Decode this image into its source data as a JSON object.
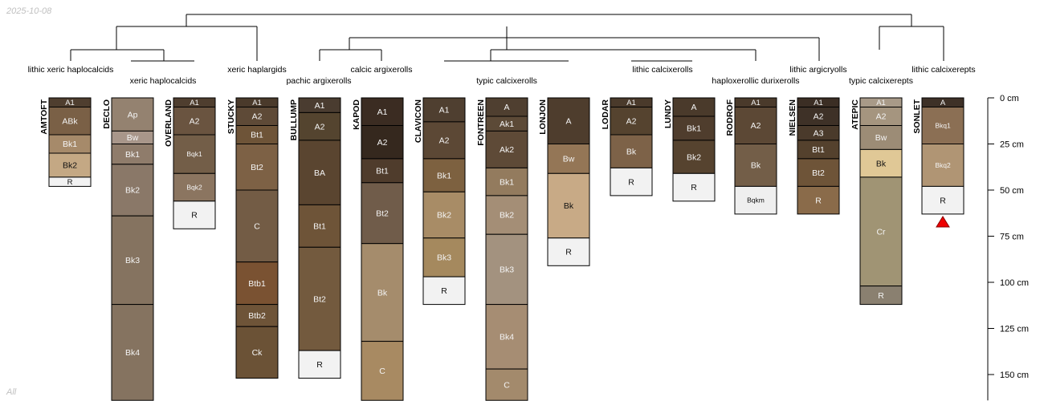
{
  "header": {
    "date": "2025-10-08"
  },
  "footer": {
    "note": "All"
  },
  "depth_axis": {
    "unit": "cm",
    "max_depth_shown": 164,
    "ticks": [
      {
        "value": 0,
        "label": "0 cm"
      },
      {
        "value": 25,
        "label": "25 cm"
      },
      {
        "value": 50,
        "label": "50 cm"
      },
      {
        "value": 75,
        "label": "75 cm"
      },
      {
        "value": 100,
        "label": "100 cm"
      },
      {
        "value": 125,
        "label": "125 cm"
      },
      {
        "value": 150,
        "label": "150 cm"
      }
    ]
  },
  "taxa_labels": [
    "lithic xeric haplocalcids",
    "xeric haplocalcids",
    "xeric haplargids",
    "pachic argixerolls",
    "calcic argixerolls",
    "typic calcixerolls",
    "lithic calcixerolls",
    "haploxerollic durixerolls",
    "lithic argicryolls",
    "typic calcixerepts",
    "lithic calcixerepts"
  ],
  "profiles": [
    {
      "name": "AMTOFT",
      "horizons": [
        {
          "name": "A1",
          "top": 0,
          "bottom": 5,
          "color": "#4f3e2f"
        },
        {
          "name": "ABk",
          "top": 5,
          "bottom": 20,
          "color": "#7a6046"
        },
        {
          "name": "Bk1",
          "top": 20,
          "bottom": 30,
          "color": "#a68a6a"
        },
        {
          "name": "Bk2",
          "top": 30,
          "bottom": 43,
          "color": "#c4a884"
        },
        {
          "name": "R",
          "top": 43,
          "bottom": 48,
          "color": "#f2f2f2"
        }
      ]
    },
    {
      "name": "DECLO",
      "horizons": [
        {
          "name": "Ap",
          "top": 0,
          "bottom": 18,
          "color": "#948270"
        },
        {
          "name": "Bw",
          "top": 18,
          "bottom": 25,
          "color": "#a8968a"
        },
        {
          "name": "Bk1",
          "top": 25,
          "bottom": 36,
          "color": "#8f7c6b"
        },
        {
          "name": "Bk2",
          "top": 36,
          "bottom": 64,
          "color": "#8a7868"
        },
        {
          "name": "Bk3",
          "top": 64,
          "bottom": 112,
          "color": "#857360"
        },
        {
          "name": "Bk4",
          "top": 112,
          "bottom": 164,
          "color": "#857360"
        }
      ]
    },
    {
      "name": "OVERLAND",
      "horizons": [
        {
          "name": "A1",
          "top": 0,
          "bottom": 5,
          "color": "#4f3e2f"
        },
        {
          "name": "A2",
          "top": 5,
          "bottom": 20,
          "color": "#6a5440"
        },
        {
          "name": "Bqk1",
          "top": 20,
          "bottom": 41,
          "color": "#735e48"
        },
        {
          "name": "Bqk2",
          "top": 41,
          "bottom": 56,
          "color": "#8b7560"
        },
        {
          "name": "R",
          "top": 56,
          "bottom": 71,
          "color": "#f2f2f2"
        }
      ]
    },
    {
      "name": "STUCKY",
      "horizons": [
        {
          "name": "A1",
          "top": 0,
          "bottom": 5,
          "color": "#4a3a2b"
        },
        {
          "name": "A2",
          "top": 5,
          "bottom": 15,
          "color": "#5e4a37"
        },
        {
          "name": "Bt1",
          "top": 15,
          "bottom": 25,
          "color": "#6e5438"
        },
        {
          "name": "Bt2",
          "top": 25,
          "bottom": 50,
          "color": "#7d6145"
        },
        {
          "name": "C",
          "top": 50,
          "bottom": 89,
          "color": "#735c45"
        },
        {
          "name": "Btb1",
          "top": 89,
          "bottom": 112,
          "color": "#7a5232"
        },
        {
          "name": "Btb2",
          "top": 112,
          "bottom": 124,
          "color": "#6e5438"
        },
        {
          "name": "Ck",
          "top": 124,
          "bottom": 152,
          "color": "#6b5236"
        }
      ]
    },
    {
      "name": "BULLUMP",
      "horizons": [
        {
          "name": "A1",
          "top": 0,
          "bottom": 8,
          "color": "#4a3c30"
        },
        {
          "name": "A2",
          "top": 8,
          "bottom": 23,
          "color": "#54442f"
        },
        {
          "name": "BA",
          "top": 23,
          "bottom": 58,
          "color": "#5a4530"
        },
        {
          "name": "Bt1",
          "top": 58,
          "bottom": 81,
          "color": "#6e5438"
        },
        {
          "name": "Bt2",
          "top": 81,
          "bottom": 137,
          "color": "#735a3e"
        },
        {
          "name": "R",
          "top": 137,
          "bottom": 152,
          "color": "#f2f2f2"
        }
      ]
    },
    {
      "name": "KAPOD",
      "horizons": [
        {
          "name": "A1",
          "top": 0,
          "bottom": 15,
          "color": "#3b2c22"
        },
        {
          "name": "A2",
          "top": 15,
          "bottom": 33,
          "color": "#35281e"
        },
        {
          "name": "Bt1",
          "top": 33,
          "bottom": 46,
          "color": "#4f3c2c"
        },
        {
          "name": "Bt2",
          "top": 46,
          "bottom": 79,
          "color": "#705c4a"
        },
        {
          "name": "Bk",
          "top": 79,
          "bottom": 132,
          "color": "#a58c6c"
        },
        {
          "name": "C",
          "top": 132,
          "bottom": 164,
          "color": "#a88a62"
        }
      ]
    },
    {
      "name": "CLAVICON",
      "horizons": [
        {
          "name": "A1",
          "top": 0,
          "bottom": 13,
          "color": "#4f3f30"
        },
        {
          "name": "A2",
          "top": 13,
          "bottom": 33,
          "color": "#5c4835"
        },
        {
          "name": "Bk1",
          "top": 33,
          "bottom": 51,
          "color": "#7d6140"
        },
        {
          "name": "Bk2",
          "top": 51,
          "bottom": 76,
          "color": "#a88c66"
        },
        {
          "name": "Bk3",
          "top": 76,
          "bottom": 97,
          "color": "#a5895e"
        },
        {
          "name": "R",
          "top": 97,
          "bottom": 112,
          "color": "#f2f2f2"
        }
      ]
    },
    {
      "name": "FONTREEN",
      "horizons": [
        {
          "name": "A",
          "top": 0,
          "bottom": 10,
          "color": "#4f3f30"
        },
        {
          "name": "Ak1",
          "top": 10,
          "bottom": 18,
          "color": "#5c4a37"
        },
        {
          "name": "Ak2",
          "top": 18,
          "bottom": 38,
          "color": "#5e4a37"
        },
        {
          "name": "Bk1",
          "top": 38,
          "bottom": 53,
          "color": "#937b5e"
        },
        {
          "name": "Bk2",
          "top": 53,
          "bottom": 74,
          "color": "#a48e76"
        },
        {
          "name": "Bk3",
          "top": 74,
          "bottom": 112,
          "color": "#a3927f"
        },
        {
          "name": "Bk4",
          "top": 112,
          "bottom": 147,
          "color": "#a68d73"
        },
        {
          "name": "C",
          "top": 147,
          "bottom": 164,
          "color": "#a38a6c"
        }
      ]
    },
    {
      "name": "LONJON",
      "horizons": [
        {
          "name": "A",
          "top": 0,
          "bottom": 25,
          "color": "#4e3d2d"
        },
        {
          "name": "Bw",
          "top": 25,
          "bottom": 41,
          "color": "#947656"
        },
        {
          "name": "Bk",
          "top": 41,
          "bottom": 76,
          "color": "#c8aa86"
        },
        {
          "name": "R",
          "top": 76,
          "bottom": 91,
          "color": "#f2f2f2"
        }
      ]
    },
    {
      "name": "LODAR",
      "horizons": [
        {
          "name": "A1",
          "top": 0,
          "bottom": 5,
          "color": "#4a3a2b"
        },
        {
          "name": "A2",
          "top": 5,
          "bottom": 20,
          "color": "#55432f"
        },
        {
          "name": "Bk",
          "top": 20,
          "bottom": 38,
          "color": "#7d6248"
        },
        {
          "name": "R",
          "top": 38,
          "bottom": 53,
          "color": "#f2f2f2"
        }
      ]
    },
    {
      "name": "LUNDY",
      "horizons": [
        {
          "name": "A",
          "top": 0,
          "bottom": 10,
          "color": "#4a3a2b"
        },
        {
          "name": "Bk1",
          "top": 10,
          "bottom": 23,
          "color": "#4f3d2d"
        },
        {
          "name": "Bk2",
          "top": 23,
          "bottom": 41,
          "color": "#56432f"
        },
        {
          "name": "R",
          "top": 41,
          "bottom": 56,
          "color": "#f2f2f2"
        }
      ]
    },
    {
      "name": "RODROF",
      "horizons": [
        {
          "name": "A1",
          "top": 0,
          "bottom": 5,
          "color": "#4a3a2b"
        },
        {
          "name": "A2",
          "top": 5,
          "bottom": 25,
          "color": "#5c4835"
        },
        {
          "name": "Bk",
          "top": 25,
          "bottom": 48,
          "color": "#735e48"
        },
        {
          "name": "Bqkm",
          "top": 48,
          "bottom": 63,
          "color": "#efefef"
        }
      ]
    },
    {
      "name": "NIELSEN",
      "horizons": [
        {
          "name": "A1",
          "top": 0,
          "bottom": 5,
          "color": "#3b2e24"
        },
        {
          "name": "A2",
          "top": 5,
          "bottom": 15,
          "color": "#3e3127"
        },
        {
          "name": "A3",
          "top": 15,
          "bottom": 23,
          "color": "#4a3a2b"
        },
        {
          "name": "Bt1",
          "top": 23,
          "bottom": 33,
          "color": "#54412d"
        },
        {
          "name": "Bt2",
          "top": 33,
          "bottom": 48,
          "color": "#6e5438"
        },
        {
          "name": "R",
          "top": 48,
          "bottom": 63,
          "color": "#8a6b4a"
        }
      ]
    },
    {
      "name": "ATEPIC",
      "horizons": [
        {
          "name": "A1",
          "top": 0,
          "bottom": 5,
          "color": "#a89a88"
        },
        {
          "name": "A2",
          "top": 5,
          "bottom": 15,
          "color": "#a5957f"
        },
        {
          "name": "Bw",
          "top": 15,
          "bottom": 28,
          "color": "#9c8c76"
        },
        {
          "name": "Bk",
          "top": 28,
          "bottom": 43,
          "color": "#e0c896"
        },
        {
          "name": "Cr",
          "top": 43,
          "bottom": 102,
          "color": "#a09474"
        },
        {
          "name": "R",
          "top": 102,
          "bottom": 112,
          "color": "#8a8070"
        }
      ]
    },
    {
      "name": "SONLET",
      "horizons": [
        {
          "name": "A",
          "top": 0,
          "bottom": 5,
          "color": "#3e3127"
        },
        {
          "name": "Bkq1",
          "top": 5,
          "bottom": 25,
          "color": "#8b6f54"
        },
        {
          "name": "Bkq2",
          "top": 25,
          "bottom": 48,
          "color": "#b09574"
        },
        {
          "name": "R",
          "top": 48,
          "bottom": 63,
          "color": "#f2f2f2"
        }
      ]
    }
  ]
}
